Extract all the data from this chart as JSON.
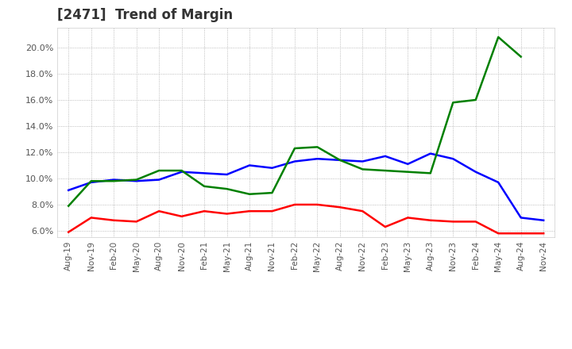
{
  "title": "[2471]  Trend of Margin",
  "x_labels": [
    "Aug-19",
    "Nov-19",
    "Feb-20",
    "May-20",
    "Aug-20",
    "Nov-20",
    "Feb-21",
    "May-21",
    "Aug-21",
    "Nov-21",
    "Feb-22",
    "May-22",
    "Aug-22",
    "Nov-22",
    "Feb-23",
    "May-23",
    "Aug-23",
    "Nov-23",
    "Feb-24",
    "May-24",
    "Aug-24",
    "Nov-24"
  ],
  "ordinary_income": [
    9.1,
    9.7,
    9.9,
    9.8,
    9.9,
    10.5,
    10.4,
    10.3,
    11.0,
    10.8,
    11.3,
    11.5,
    11.4,
    11.3,
    11.7,
    11.1,
    11.9,
    11.5,
    10.5,
    9.7,
    7.0,
    6.8
  ],
  "net_income": [
    5.9,
    7.0,
    6.8,
    6.7,
    7.5,
    7.1,
    7.5,
    7.3,
    7.5,
    7.5,
    8.0,
    8.0,
    7.8,
    7.5,
    6.3,
    7.0,
    6.8,
    6.7,
    6.7,
    5.8,
    5.8,
    5.8
  ],
  "operating_cashflow": [
    7.9,
    9.8,
    9.8,
    9.9,
    10.6,
    10.6,
    9.4,
    9.2,
    8.8,
    8.9,
    12.3,
    12.4,
    11.4,
    10.7,
    10.6,
    10.5,
    10.4,
    15.8,
    16.0,
    20.8,
    19.3,
    null
  ],
  "ylim": [
    5.5,
    21.5
  ],
  "yticks": [
    6.0,
    8.0,
    10.0,
    12.0,
    14.0,
    16.0,
    18.0,
    20.0
  ],
  "colors": {
    "ordinary_income": "#0000ff",
    "net_income": "#ff0000",
    "operating_cashflow": "#008000"
  },
  "background_color": "#ffffff",
  "grid_color": "#aaaaaa",
  "title_color": "#333333",
  "tick_color": "#555555"
}
